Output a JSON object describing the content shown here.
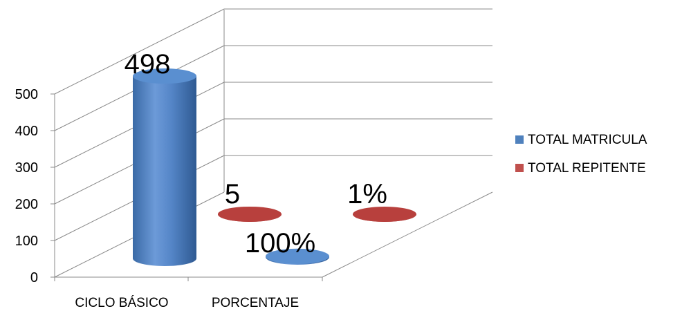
{
  "chart_data": {
    "type": "bar",
    "style": "3d-cylinder",
    "categories": [
      "CICLO BÁSICO",
      "PORCENTAJE"
    ],
    "series": [
      {
        "name": "TOTAL MATRICULA",
        "values": [
          498,
          100
        ],
        "labels": [
          "498",
          "100%"
        ],
        "color": "#4F81BD"
      },
      {
        "name": "TOTAL REPITENTE",
        "values": [
          5,
          1
        ],
        "labels": [
          "5",
          "1%"
        ],
        "color": "#C0504D"
      }
    ],
    "y_ticks": [
      "0",
      "100",
      "200",
      "300",
      "400",
      "500"
    ],
    "ylim": [
      0,
      500
    ],
    "grid": true,
    "legend_position": "right"
  }
}
